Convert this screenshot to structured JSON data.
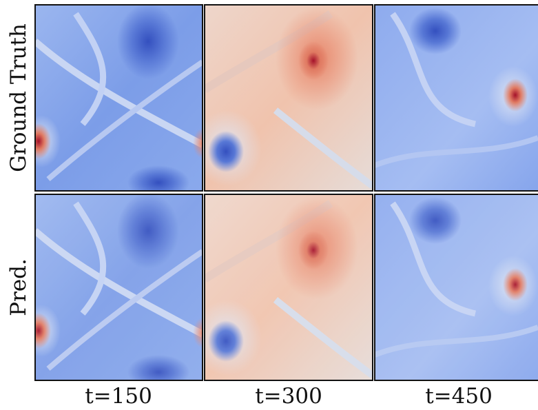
{
  "rows": [
    "Ground Truth",
    "Pred."
  ],
  "columns": [
    "t=150",
    "t=300",
    "t=450"
  ]
}
